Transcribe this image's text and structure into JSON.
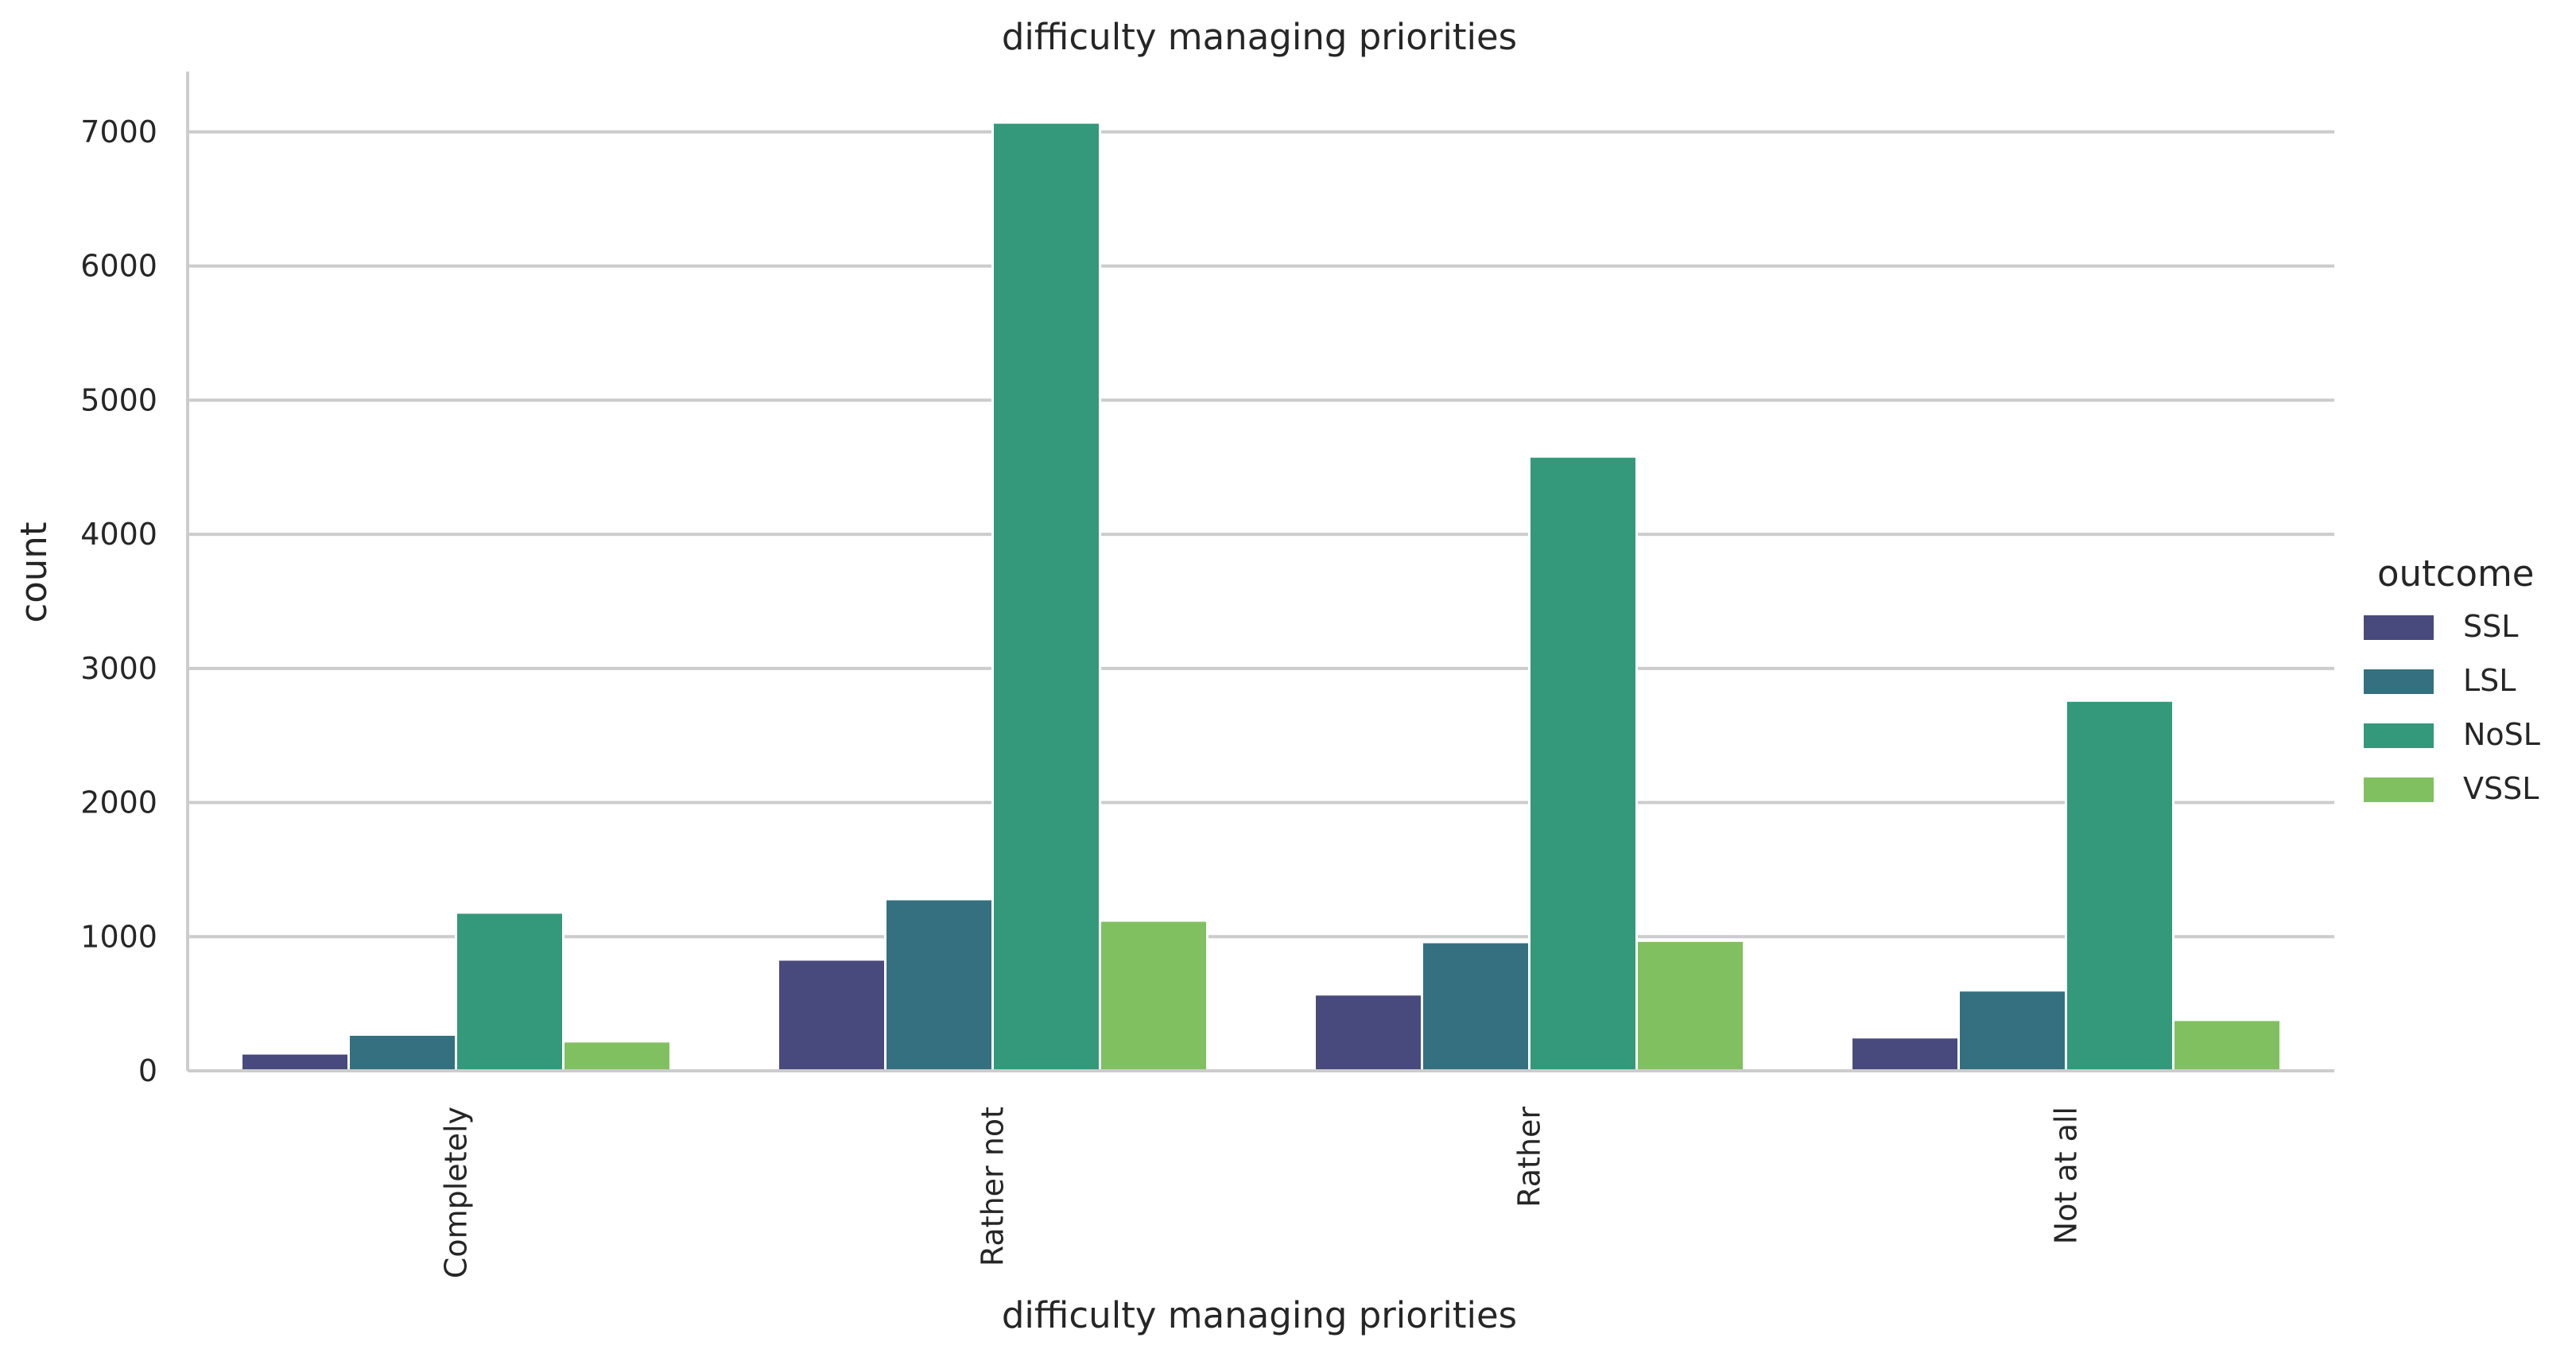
{
  "chart_data": {
    "type": "bar",
    "title": "difficulty managing priorities",
    "xlabel": "difficulty managing priorities",
    "ylabel": "count",
    "categories": [
      "Completely",
      "Rather not",
      "Rather",
      "Not at all"
    ],
    "series": [
      {
        "name": "SSL",
        "color": "#48497c",
        "values": [
          130,
          830,
          570,
          250
        ]
      },
      {
        "name": "LSL",
        "color": "#34707f",
        "values": [
          270,
          1280,
          960,
          600
        ]
      },
      {
        "name": "NoSL",
        "color": "#34987b",
        "values": [
          1180,
          7070,
          4580,
          2760
        ]
      },
      {
        "name": "VSSL",
        "color": "#81c060",
        "values": [
          220,
          1120,
          970,
          380
        ]
      }
    ],
    "ylim": [
      0,
      7450
    ],
    "yticks": [
      0,
      1000,
      2000,
      3000,
      4000,
      5000,
      6000,
      7000
    ],
    "grid": "y",
    "legend": {
      "title": "outcome",
      "placement": "right"
    }
  }
}
